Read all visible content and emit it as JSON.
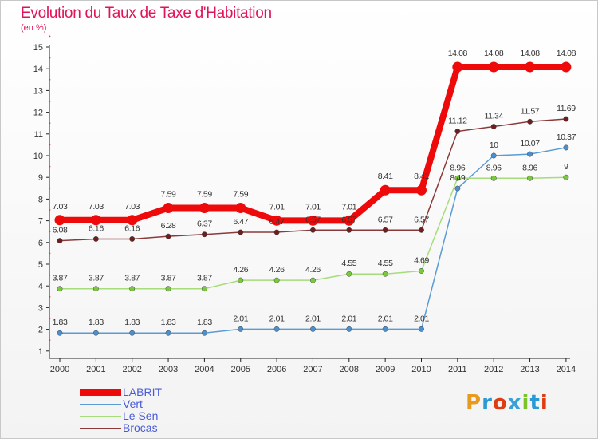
{
  "title": "Evolution du Taux de Taxe d'Habitation",
  "unit": "(en %)",
  "brand": "Proxiti",
  "brand_colors": [
    "#e89a1c",
    "#2a9ad6",
    "#e03c14",
    "#3aa0d8",
    "#7cc22a",
    "#2a9ad6",
    "#e03c14"
  ],
  "chart_data": {
    "type": "line",
    "title": "Evolution du Taux de Taxe d'Habitation",
    "ylabel": "(en %)",
    "xlabel": "",
    "x": [
      "2000",
      "2001",
      "2002",
      "2003",
      "2004",
      "2005",
      "2006",
      "2007",
      "2008",
      "2009",
      "2010",
      "2011",
      "2012",
      "2013",
      "2014"
    ],
    "ylim": [
      0,
      15
    ],
    "yticks": [
      "1",
      "2",
      "3",
      "4",
      "5",
      "6",
      "7",
      "8",
      "9",
      "10",
      "11",
      "12",
      "13",
      "14",
      "15"
    ],
    "grid": false,
    "legend_position": "bottom-left",
    "series": [
      {
        "name": "LABRIT",
        "color": "#ee0a0a",
        "emphasis": true,
        "values": [
          7.03,
          7.03,
          7.03,
          7.59,
          7.59,
          7.59,
          7.01,
          7.01,
          7.01,
          8.41,
          8.41,
          14.08,
          14.08,
          14.08,
          14.08
        ],
        "labels": [
          "7.03",
          "7.03",
          "7.03",
          "7.59",
          "7.59",
          "7.59",
          "7.01",
          "7.01",
          "7.01",
          "8.41",
          "8.41",
          "14.08",
          "14.08",
          "14.08",
          "14.08"
        ]
      },
      {
        "name": "Vert",
        "color": "#5b9bd5",
        "marker": "#4a90d0",
        "values": [
          1.83,
          1.83,
          1.83,
          1.83,
          1.83,
          2.01,
          2.01,
          2.01,
          2.01,
          2.01,
          2.01,
          8.49,
          10,
          10.07,
          10.37
        ],
        "labels": [
          "1.83",
          "1.83",
          "1.83",
          "1.83",
          "1.83",
          "2.01",
          "2.01",
          "2.01",
          "2.01",
          "2.01",
          "2.01",
          "8.49",
          "10",
          "10.07",
          "10.37"
        ]
      },
      {
        "name": "Le Sen",
        "color": "#a6dc7a",
        "marker": "#7ac83c",
        "values": [
          3.87,
          3.87,
          3.87,
          3.87,
          3.87,
          4.26,
          4.26,
          4.26,
          4.55,
          4.55,
          4.69,
          8.96,
          8.96,
          8.96,
          9
        ],
        "labels": [
          "3.87",
          "3.87",
          "3.87",
          "3.87",
          "3.87",
          "4.26",
          "4.26",
          "4.26",
          "4.55",
          "4.55",
          "4.69",
          "8.96",
          "8.96",
          "8.96",
          "9"
        ]
      },
      {
        "name": "Brocas",
        "color": "#8a3a3a",
        "marker": "#6e1e1e",
        "values": [
          6.08,
          6.16,
          6.16,
          6.28,
          6.37,
          6.47,
          6.47,
          6.57,
          6.57,
          6.57,
          6.57,
          11.12,
          11.34,
          11.57,
          11.69
        ],
        "labels": [
          "6.08",
          "6.16",
          "6.16",
          "6.28",
          "6.37",
          "6.47",
          "6.47",
          "6.57",
          "6.57",
          "6.57",
          "6.57",
          "11.12",
          "11.34",
          "11.57",
          "11.69"
        ]
      }
    ]
  }
}
